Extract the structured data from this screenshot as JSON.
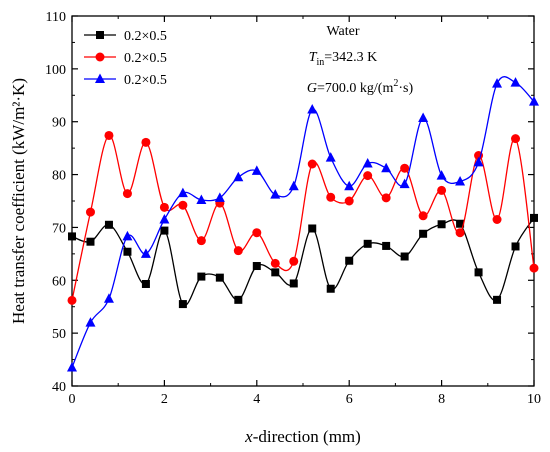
{
  "chart_data": {
    "type": "line",
    "title": "",
    "xlabel_prefix": "x",
    "xlabel_rest": "-direction (mm)",
    "ylabel": "Heat transfer coefficient (kW/m²·K)",
    "xlim": [
      0,
      10
    ],
    "ylim": [
      40,
      110
    ],
    "xticks": [
      0,
      2,
      4,
      6,
      8,
      10
    ],
    "yticks": [
      40,
      50,
      60,
      70,
      80,
      90,
      100,
      110
    ],
    "grid": false,
    "legend_position": "top-left",
    "annotations": {
      "fluid": "Water",
      "tin_symbol": "T",
      "tin_sub": "in",
      "tin_value": "=342.3 K",
      "g_symbol": "G",
      "g_value": "=700.0 kg/(m",
      "g_sup": "2",
      "g_tail": "·s)"
    },
    "series": [
      {
        "name": "0.2×0.5",
        "color": "#000000",
        "marker": "square",
        "x": [
          0,
          0.4,
          0.8,
          1.2,
          1.6,
          2.0,
          2.4,
          2.8,
          3.2,
          3.6,
          4.0,
          4.4,
          4.8,
          5.2,
          5.6,
          6.0,
          6.4,
          6.8,
          7.2,
          7.6,
          8.0,
          8.4,
          8.8,
          9.2,
          9.6,
          10.0
        ],
        "y": [
          68.3,
          67.3,
          70.5,
          65.4,
          59.3,
          69.4,
          55.5,
          60.7,
          60.5,
          56.3,
          62.7,
          61.5,
          59.4,
          69.8,
          58.4,
          63.7,
          66.9,
          66.5,
          64.5,
          68.8,
          70.6,
          70.7,
          61.5,
          56.3,
          66.4,
          71.8
        ]
      },
      {
        "name": "0.2×0.5",
        "color": "#ff0000",
        "marker": "circle",
        "x": [
          0,
          0.4,
          0.8,
          1.2,
          1.6,
          2.0,
          2.4,
          2.8,
          3.2,
          3.6,
          4.0,
          4.4,
          4.8,
          5.2,
          5.6,
          6.0,
          6.4,
          6.8,
          7.2,
          7.6,
          8.0,
          8.4,
          8.8,
          9.2,
          9.6,
          10.0
        ],
        "y": [
          56.2,
          72.9,
          87.4,
          76.4,
          86.1,
          73.8,
          74.2,
          67.5,
          74.6,
          65.6,
          69.0,
          63.2,
          63.6,
          82.0,
          75.7,
          75.0,
          79.8,
          75.6,
          81.2,
          72.2,
          77.0,
          69.0,
          83.6,
          71.5,
          86.8,
          62.3
        ]
      },
      {
        "name": "0.2×0.5",
        "color": "#0000ff",
        "marker": "triangle",
        "x": [
          0,
          0.4,
          0.8,
          1.2,
          1.6,
          2.0,
          2.4,
          2.8,
          3.2,
          3.6,
          4.0,
          4.4,
          4.8,
          5.2,
          5.6,
          6.0,
          6.4,
          6.8,
          7.2,
          7.6,
          8.0,
          8.4,
          8.8,
          9.2,
          9.6,
          10.0
        ],
        "y": [
          43.5,
          52.0,
          56.5,
          68.3,
          65.0,
          71.5,
          76.5,
          75.2,
          75.6,
          79.5,
          80.7,
          76.2,
          77.8,
          92.3,
          83.2,
          77.8,
          82.1,
          81.2,
          78.2,
          90.7,
          79.8,
          78.7,
          82.3,
          97.2,
          97.4,
          93.8
        ]
      }
    ]
  }
}
